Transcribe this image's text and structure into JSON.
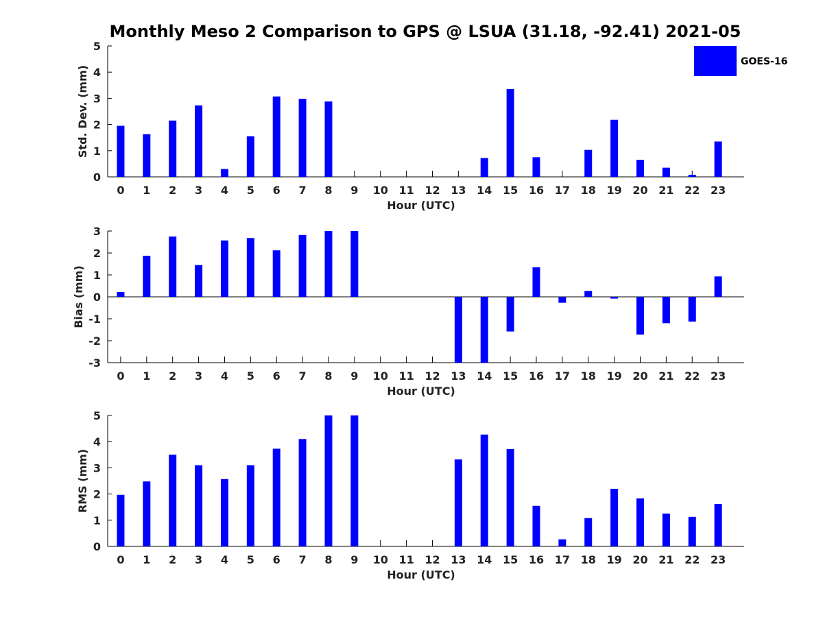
{
  "title": "Monthly Meso 2 Comparison to GPS @ LSUA (31.18, -92.41) 2021-05",
  "legend": {
    "label": "GOES-16",
    "placement": "top-right",
    "color": "#0000ff"
  },
  "bar_color": "#0000ff",
  "chart_data": [
    {
      "type": "bar",
      "name": "std-dev",
      "xlabel": "Hour (UTC)",
      "ylabel": "Std. Dev. (mm)",
      "ylim": [
        0,
        5
      ],
      "yticks": [
        0,
        1,
        2,
        3,
        4,
        5
      ],
      "categories": [
        "0",
        "1",
        "2",
        "3",
        "4",
        "5",
        "6",
        "7",
        "8",
        "9",
        "10",
        "11",
        "12",
        "13",
        "14",
        "15",
        "16",
        "17",
        "18",
        "19",
        "20",
        "21",
        "22",
        "23"
      ],
      "values": [
        1.95,
        1.63,
        2.15,
        2.73,
        0.3,
        1.55,
        3.07,
        2.98,
        2.88,
        null,
        null,
        null,
        null,
        null,
        0.72,
        3.35,
        0.75,
        null,
        1.03,
        2.18,
        0.65,
        0.35,
        0.08,
        1.35
      ]
    },
    {
      "type": "bar",
      "name": "bias",
      "xlabel": "Hour (UTC)",
      "ylabel": "Bias (mm)",
      "ylim": [
        -3,
        3
      ],
      "yticks": [
        -3,
        -2,
        -1,
        0,
        1,
        2,
        3
      ],
      "categories": [
        "0",
        "1",
        "2",
        "3",
        "4",
        "5",
        "6",
        "7",
        "8",
        "9",
        "10",
        "11",
        "12",
        "13",
        "14",
        "15",
        "16",
        "17",
        "18",
        "19",
        "20",
        "21",
        "22",
        "23"
      ],
      "values": [
        0.22,
        1.87,
        2.75,
        1.45,
        2.57,
        2.68,
        2.12,
        2.82,
        3.0,
        3.0,
        null,
        null,
        null,
        -3.0,
        -3.0,
        -1.58,
        1.35,
        -0.27,
        0.27,
        -0.08,
        -1.72,
        -1.2,
        -1.13,
        0.93
      ]
    },
    {
      "type": "bar",
      "name": "rms",
      "xlabel": "Hour (UTC)",
      "ylabel": "RMS (mm)",
      "ylim": [
        0,
        5
      ],
      "yticks": [
        0,
        1,
        2,
        3,
        4,
        5
      ],
      "categories": [
        "0",
        "1",
        "2",
        "3",
        "4",
        "5",
        "6",
        "7",
        "8",
        "9",
        "10",
        "11",
        "12",
        "13",
        "14",
        "15",
        "16",
        "17",
        "18",
        "19",
        "20",
        "21",
        "22",
        "23"
      ],
      "values": [
        1.97,
        2.48,
        3.5,
        3.1,
        2.57,
        3.1,
        3.73,
        4.1,
        5.0,
        5.0,
        null,
        null,
        null,
        3.32,
        4.27,
        3.72,
        1.55,
        0.27,
        1.08,
        2.2,
        1.83,
        1.25,
        1.13,
        1.62
      ]
    }
  ]
}
